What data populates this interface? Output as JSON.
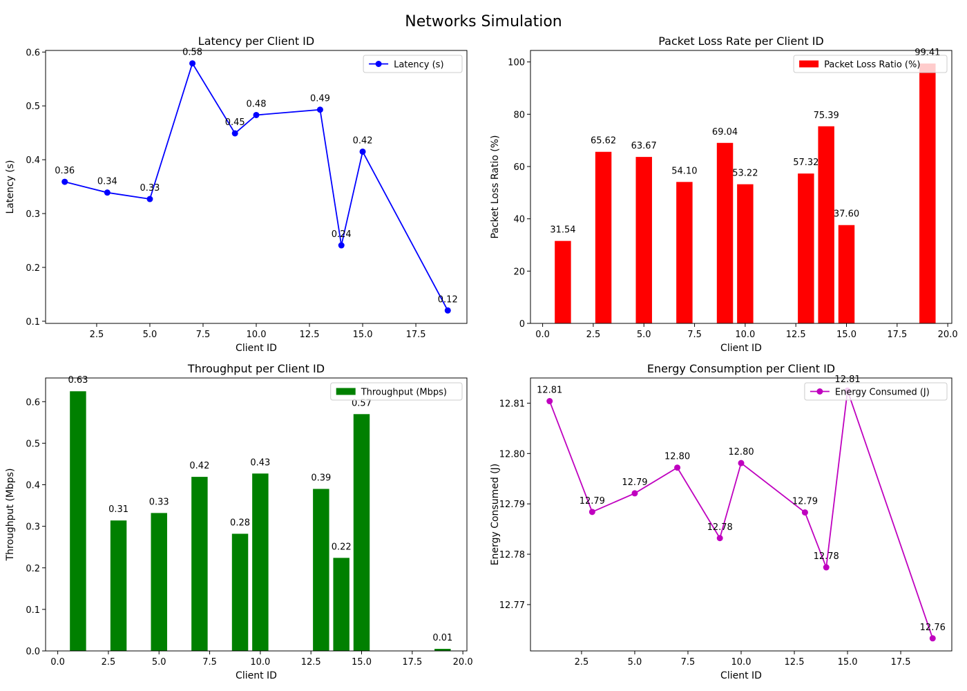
{
  "figure_title": "Networks Simulation",
  "chart_data": [
    {
      "type": "line",
      "title": "Latency per Client ID",
      "xlabel": "Client ID",
      "ylabel": "Latency (s)",
      "xlim": [
        0.1,
        19.9
      ],
      "ylim": [
        0.096,
        0.603
      ],
      "xticks": [
        2.5,
        5.0,
        7.5,
        10.0,
        12.5,
        15.0,
        17.5
      ],
      "xtick_labels": [
        "2.5",
        "5.0",
        "7.5",
        "10.0",
        "12.5",
        "15.0",
        "17.5"
      ],
      "yticks": [
        0.1,
        0.2,
        0.3,
        0.4,
        0.5,
        0.6
      ],
      "ytick_labels": [
        "0.1",
        "0.2",
        "0.3",
        "0.4",
        "0.5",
        "0.6"
      ],
      "legend_position": "top-right",
      "grid": false,
      "series": [
        {
          "name": "Latency (s)",
          "color": "#0000ff",
          "marker": "circle",
          "x": [
            1,
            3,
            5,
            7,
            9,
            10,
            13,
            14,
            15,
            19
          ],
          "y": [
            0.359,
            0.339,
            0.327,
            0.579,
            0.449,
            0.483,
            0.493,
            0.241,
            0.415,
            0.12
          ],
          "labels": [
            "0.36",
            "0.34",
            "0.33",
            "0.58",
            "0.45",
            "0.48",
            "0.49",
            "0.24",
            "0.42",
            "0.12"
          ]
        }
      ]
    },
    {
      "type": "bar",
      "title": "Packet Loss Rate per Client ID",
      "xlabel": "Client ID",
      "ylabel": "Packet Loss Ratio (%)",
      "xlim": [
        -0.6,
        20.2
      ],
      "ylim": [
        0,
        104.4
      ],
      "bar_width": 0.8,
      "xticks": [
        0,
        2.5,
        5,
        7.5,
        10,
        12.5,
        15,
        17.5,
        20
      ],
      "xtick_labels": [
        "0.0",
        "2.5",
        "5.0",
        "7.5",
        "10.0",
        "12.5",
        "15.0",
        "17.5",
        "20.0"
      ],
      "yticks": [
        0,
        20,
        40,
        60,
        80,
        100
      ],
      "ytick_labels": [
        "0",
        "20",
        "40",
        "60",
        "80",
        "100"
      ],
      "legend_position": "top-right",
      "grid": false,
      "series": [
        {
          "name": "Packet Loss Ratio (%)",
          "color": "#ff0000",
          "x": [
            1,
            3,
            5,
            7,
            9,
            10,
            13,
            14,
            15,
            19
          ],
          "y": [
            31.54,
            65.62,
            63.67,
            54.1,
            69.04,
            53.22,
            57.32,
            75.39,
            37.6,
            99.41
          ],
          "labels": [
            "31.54",
            "65.62",
            "63.67",
            "54.10",
            "69.04",
            "53.22",
            "57.32",
            "75.39",
            "37.60",
            "99.41"
          ]
        }
      ]
    },
    {
      "type": "bar",
      "title": "Throughput per Client ID",
      "xlabel": "Client ID",
      "ylabel": "Throughput (Mbps)",
      "xlim": [
        -0.6,
        20.2
      ],
      "ylim": [
        0,
        0.657
      ],
      "bar_width": 0.8,
      "xticks": [
        0,
        2.5,
        5,
        7.5,
        10,
        12.5,
        15,
        17.5,
        20
      ],
      "xtick_labels": [
        "0.0",
        "2.5",
        "5.0",
        "7.5",
        "10.0",
        "12.5",
        "15.0",
        "17.5",
        "20.0"
      ],
      "yticks": [
        0,
        0.1,
        0.2,
        0.3,
        0.4,
        0.5,
        0.6
      ],
      "ytick_labels": [
        "0.0",
        "0.1",
        "0.2",
        "0.3",
        "0.4",
        "0.5",
        "0.6"
      ],
      "legend_position": "top-right",
      "grid": false,
      "series": [
        {
          "name": "Throughput (Mbps)",
          "color": "#008000",
          "x": [
            1,
            3,
            5,
            7,
            9,
            10,
            13,
            14,
            15,
            19
          ],
          "y": [
            0.625,
            0.314,
            0.332,
            0.419,
            0.282,
            0.427,
            0.39,
            0.224,
            0.57,
            0.005
          ],
          "labels": [
            "0.63",
            "0.31",
            "0.33",
            "0.42",
            "0.28",
            "0.43",
            "0.39",
            "0.22",
            "0.57",
            "0.01"
          ]
        }
      ]
    },
    {
      "type": "line",
      "title": "Energy Consumption per Client ID",
      "xlabel": "Client ID",
      "ylabel": "Energy Consumed (J)",
      "xlim": [
        0.1,
        19.9
      ],
      "ylim": [
        12.7608,
        12.815
      ],
      "xticks": [
        2.5,
        5.0,
        7.5,
        10.0,
        12.5,
        15.0,
        17.5
      ],
      "xtick_labels": [
        "2.5",
        "5.0",
        "7.5",
        "10.0",
        "12.5",
        "15.0",
        "17.5"
      ],
      "yticks": [
        12.77,
        12.78,
        12.79,
        12.8,
        12.81
      ],
      "ytick_labels": [
        "12.77",
        "12.78",
        "12.79",
        "12.80",
        "12.81"
      ],
      "legend_position": "top-right",
      "grid": false,
      "series": [
        {
          "name": "Energy Consumed (J)",
          "color": "#bf00bf",
          "marker": "circle",
          "x": [
            1,
            3,
            5,
            7,
            9,
            10,
            13,
            14,
            15,
            19
          ],
          "y": [
            12.8104,
            12.7884,
            12.7921,
            12.7972,
            12.7832,
            12.7981,
            12.7883,
            12.7774,
            12.8125,
            12.7633
          ],
          "labels": [
            "12.81",
            "12.79",
            "12.79",
            "12.80",
            "12.78",
            "12.80",
            "12.79",
            "12.78",
            "12.81",
            "12.76"
          ]
        }
      ]
    }
  ]
}
